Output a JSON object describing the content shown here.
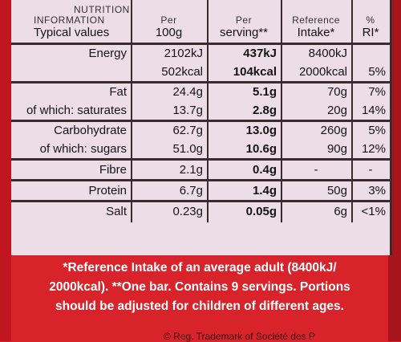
{
  "header": {
    "label_line1": "NUTRITION",
    "label_line2": "INFORMATION",
    "label_line3": "Typical values",
    "per100_line1": "Per",
    "per100_line2": "100g",
    "serving_line1": "Per",
    "serving_line2": "serving**",
    "ri_line1": "Reference",
    "ri_line2": "Intake*",
    "pct_line1": "%",
    "pct_line2": "RI*"
  },
  "rows": [
    {
      "label": "Energy",
      "per100": "2102kJ",
      "serving": "437kJ",
      "ri": "8400kJ",
      "pct": ""
    },
    {
      "label": "",
      "per100": "502kcal",
      "serving": "104kcal",
      "ri": "2000kcal",
      "pct": "5%"
    },
    {
      "label": "Fat",
      "per100": "24.4g",
      "serving": "5.1g",
      "ri": "70g",
      "pct": "7%"
    },
    {
      "label": "of which: saturates",
      "per100": "13.7g",
      "serving": "2.8g",
      "ri": "20g",
      "pct": "14%"
    },
    {
      "label": "Carbohydrate",
      "per100": "62.7g",
      "serving": "13.0g",
      "ri": "260g",
      "pct": "5%"
    },
    {
      "label": "of which: sugars",
      "per100": "51.0g",
      "serving": "10.6g",
      "ri": "90g",
      "pct": "12%"
    },
    {
      "label": "Fibre",
      "per100": "2.1g",
      "serving": "0.4g",
      "ri": "-",
      "pct": "-"
    },
    {
      "label": "Protein",
      "per100": "6.7g",
      "serving": "1.4g",
      "ri": "50g",
      "pct": "3%"
    },
    {
      "label": "Salt",
      "per100": "0.23g",
      "serving": "0.05g",
      "ri": "6g",
      "pct": "<1%"
    }
  ],
  "footnote": {
    "line1": "*Reference Intake of an average adult (8400kJ/",
    "line2": "2000kcal). **One bar. Contains 9 servings. Portions",
    "line3": "should be adjusted for children of different ages."
  },
  "trademark": "© Reg. Trademark of Société des P",
  "colors": {
    "background": "#d8232a",
    "panel": "#ecdde7",
    "rule": "#3b2a2e",
    "footnote_text": "#ffffff"
  }
}
